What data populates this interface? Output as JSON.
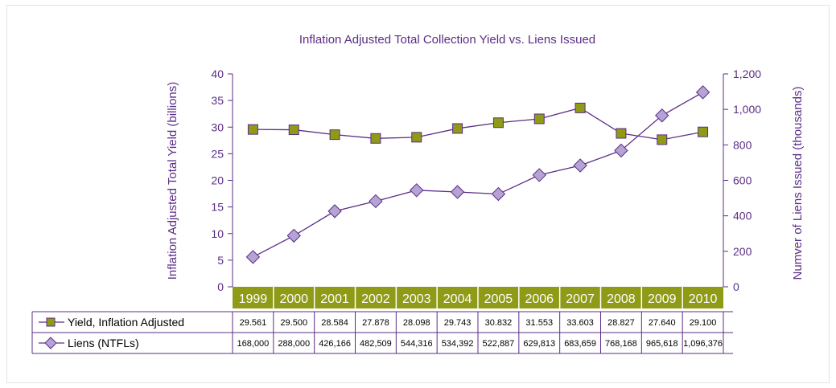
{
  "chart_data": {
    "type": "line",
    "title": "Inflation Adjusted Total Collection Yield vs. Liens Issued",
    "ylabel_left": "Inflation Adjusted Total Yield (billions)",
    "ylabel_right": "Numver of Liens Issued (thousands)",
    "categories": [
      "1999",
      "2000",
      "2001",
      "2002",
      "2003",
      "2004",
      "2005",
      "2006",
      "2007",
      "2008",
      "2009",
      "2010"
    ],
    "ylim_left": [
      0,
      40
    ],
    "yticks_left": [
      "0",
      "5",
      "10",
      "15",
      "20",
      "25",
      "30",
      "35",
      "40"
    ],
    "ylim_right": [
      0,
      1200
    ],
    "yticks_right": [
      "0",
      "200",
      "400",
      "600",
      "800",
      "1,000",
      "1,200"
    ],
    "grid": false,
    "legend": "data table below chart",
    "series": [
      {
        "name": "Yield, Inflation Adjusted",
        "axis": "left",
        "marker": "square",
        "color": "#8f9a17",
        "values": [
          29.561,
          29.5,
          28.584,
          27.878,
          28.098,
          29.743,
          30.832,
          31.553,
          33.603,
          28.827,
          27.64,
          29.1
        ],
        "labels": [
          "29.561",
          "29.500",
          "28.584",
          "27.878",
          "28.098",
          "29.743",
          "30.832",
          "31.553",
          "33.603",
          "28.827",
          "27.640",
          "29.100"
        ]
      },
      {
        "name": "Liens (NTFLs)",
        "axis": "right",
        "marker": "diamond",
        "color": "#b4a3d4",
        "values": [
          168.0,
          288.0,
          426.166,
          482.509,
          544.316,
          534.392,
          522.887,
          629.813,
          683.659,
          768.168,
          965.618,
          1096.376
        ],
        "labels": [
          "168,000",
          "288,000",
          "426,166",
          "482,509",
          "544,316",
          "534,392",
          "522,887",
          "629,813",
          "683,659",
          "768,168",
          "965,618",
          "1,096,376"
        ]
      }
    ],
    "colors": {
      "line": "#5b2d86",
      "title": "#5b2d86",
      "category_band": "#8f9a17",
      "category_text": "#ffffff",
      "table_text": "#000000",
      "border": "#5b2d86"
    }
  }
}
